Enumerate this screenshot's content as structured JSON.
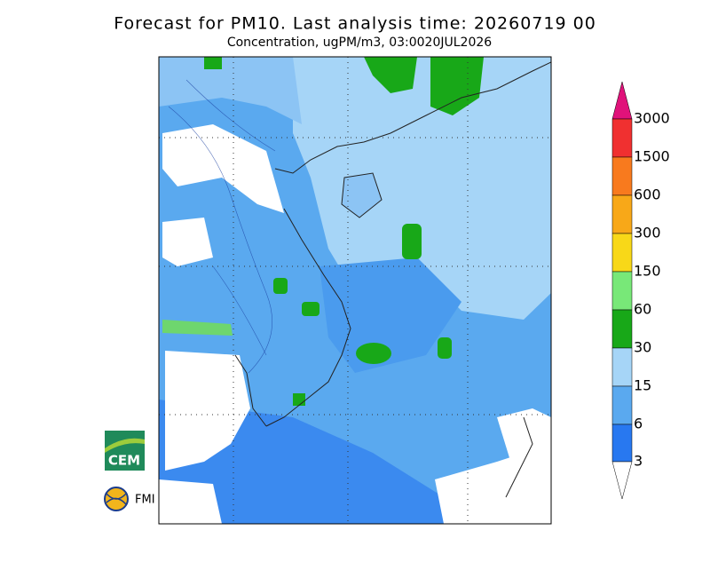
{
  "header": {
    "title": "Forecast for PM10. Last analysis time: 20260719 00",
    "subtitle": "Concentration, ugPM/m3, 03:0020JUL2026"
  },
  "colorbar": {
    "labels": [
      3,
      6,
      15,
      30,
      60,
      150,
      300,
      600,
      1500,
      3000
    ]
  },
  "logos": {
    "cem": "CEM",
    "fmi": "FMI"
  }
}
